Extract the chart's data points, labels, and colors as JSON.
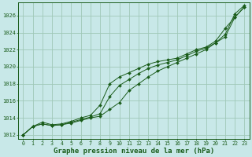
{
  "background_color": "#c8e8e8",
  "grid_color": "#a0c8b8",
  "line_color": "#1a5c1a",
  "marker_color": "#1a5c1a",
  "xlabel": "Graphe pression niveau de la mer (hPa)",
  "xlabel_fontsize": 6.5,
  "ylabel_values": [
    1012,
    1014,
    1016,
    1018,
    1020,
    1022,
    1024,
    1026
  ],
  "xlim": [
    -0.5,
    23.5
  ],
  "ylim": [
    1011.5,
    1027.5
  ],
  "series1": [
    1012.0,
    1013.0,
    1013.3,
    1013.1,
    1013.2,
    1013.4,
    1013.7,
    1014.0,
    1014.2,
    1015.0,
    1015.8,
    1017.2,
    1018.0,
    1018.8,
    1019.5,
    1020.0,
    1020.5,
    1021.0,
    1021.5,
    1022.0,
    1022.8,
    1023.5,
    1025.8,
    1027.0
  ],
  "series2": [
    1012.0,
    1013.0,
    1013.3,
    1013.1,
    1013.2,
    1013.5,
    1013.8,
    1014.1,
    1014.5,
    1016.5,
    1017.8,
    1018.5,
    1019.2,
    1019.8,
    1020.2,
    1020.5,
    1020.8,
    1021.3,
    1021.8,
    1022.2,
    1022.8,
    1023.8,
    1026.2,
    1027.2
  ],
  "series3": [
    1012.0,
    1013.0,
    1013.5,
    1013.2,
    1013.3,
    1013.6,
    1014.0,
    1014.3,
    1015.5,
    1018.0,
    1018.8,
    1019.3,
    1019.8,
    1020.3,
    1020.6,
    1020.8,
    1021.0,
    1021.5,
    1022.0,
    1022.3,
    1023.0,
    1024.5,
    1025.8,
    1027.0
  ],
  "xtick_labels": [
    "0",
    "1",
    "2",
    "3",
    "4",
    "5",
    "6",
    "7",
    "8",
    "9",
    "10",
    "11",
    "12",
    "13",
    "14",
    "15",
    "16",
    "17",
    "18",
    "19",
    "20",
    "21",
    "22",
    "23"
  ]
}
